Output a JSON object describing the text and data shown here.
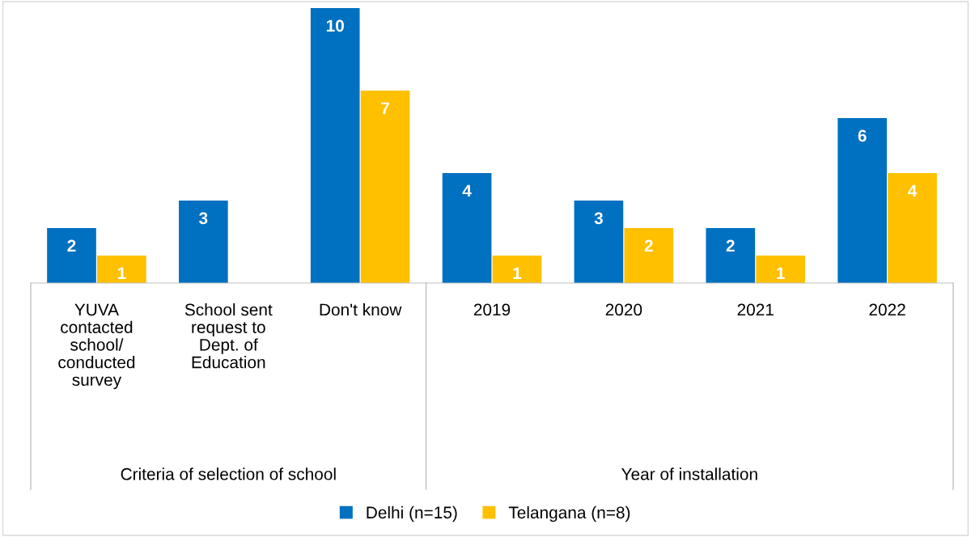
{
  "chart_data": {
    "type": "bar",
    "categories": [
      "YUVA\ncontacted\nschool/\nconducted\nsurvey",
      "School sent\nrequest to\nDept. of\nEducation",
      "Don't know",
      "2019",
      "2020",
      "2021",
      "2022"
    ],
    "series": [
      {
        "name": "Delhi (n=15)",
        "color": "#0070c0",
        "values": [
          2,
          3,
          10,
          4,
          3,
          2,
          6
        ]
      },
      {
        "name": "Telangana (n=8)",
        "color": "#ffc000",
        "values": [
          1,
          null,
          7,
          1,
          2,
          1,
          4
        ]
      }
    ],
    "data_labels": true,
    "legend": "bottom",
    "annotations": [
      "Criteria of selection of school",
      "Year of installation"
    ]
  }
}
